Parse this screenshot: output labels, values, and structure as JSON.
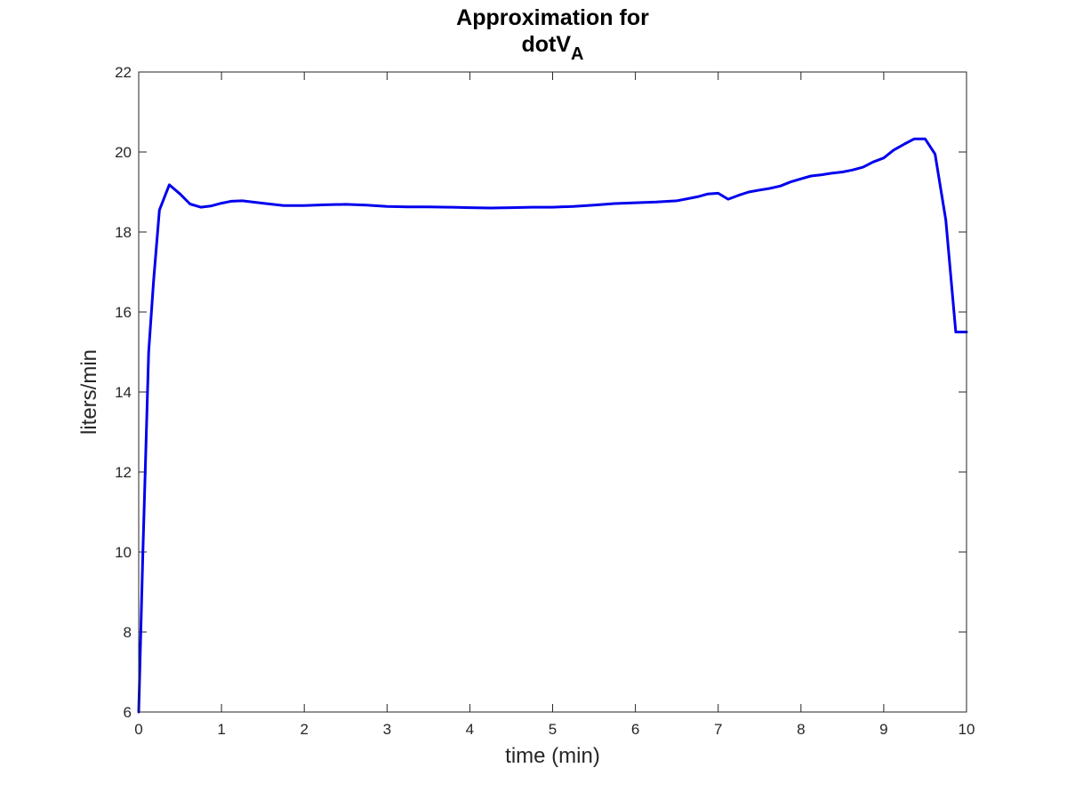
{
  "chart_data": {
    "type": "line",
    "title_line1": "Approximation for",
    "title_line2_main": "dotV",
    "title_line2_sub": "A",
    "xlabel": "time (min)",
    "ylabel": "liters/min",
    "xlim": [
      0,
      10
    ],
    "ylim": [
      6,
      22
    ],
    "xticks": [
      0,
      1,
      2,
      3,
      4,
      5,
      6,
      7,
      8,
      9,
      10
    ],
    "yticks": [
      6,
      8,
      10,
      12,
      14,
      16,
      18,
      20,
      22
    ],
    "grid": false,
    "series": [
      {
        "name": "dotV_A",
        "color": "#0000ee",
        "x": [
          0,
          0.05,
          0.12,
          0.18,
          0.25,
          0.37,
          0.5,
          0.62,
          0.75,
          0.87,
          1.0,
          1.12,
          1.25,
          1.5,
          1.75,
          2.0,
          2.25,
          2.5,
          2.75,
          3.0,
          3.25,
          3.5,
          3.75,
          4.0,
          4.25,
          4.5,
          4.75,
          5.0,
          5.25,
          5.5,
          5.75,
          6.0,
          6.25,
          6.5,
          6.75,
          6.87,
          7.0,
          7.12,
          7.25,
          7.37,
          7.5,
          7.62,
          7.75,
          7.87,
          8.0,
          8.12,
          8.25,
          8.37,
          8.5,
          8.62,
          8.75,
          8.87,
          9.0,
          9.12,
          9.25,
          9.37,
          9.5,
          9.62,
          9.75,
          9.87,
          10.0
        ],
        "y": [
          6.0,
          10.0,
          15.0,
          16.8,
          18.55,
          19.18,
          18.95,
          18.7,
          18.62,
          18.65,
          18.72,
          18.77,
          18.78,
          18.72,
          18.66,
          18.66,
          18.68,
          18.69,
          18.67,
          18.64,
          18.63,
          18.63,
          18.62,
          18.61,
          18.6,
          18.61,
          18.62,
          18.62,
          18.64,
          18.67,
          18.71,
          18.73,
          18.75,
          18.78,
          18.88,
          18.95,
          18.97,
          18.82,
          18.92,
          19.0,
          19.05,
          19.09,
          19.15,
          19.25,
          19.33,
          19.4,
          19.43,
          19.47,
          19.5,
          19.55,
          19.62,
          19.75,
          19.85,
          20.05,
          20.2,
          20.33,
          20.33,
          19.95,
          18.3,
          15.5,
          15.5
        ]
      }
    ]
  }
}
